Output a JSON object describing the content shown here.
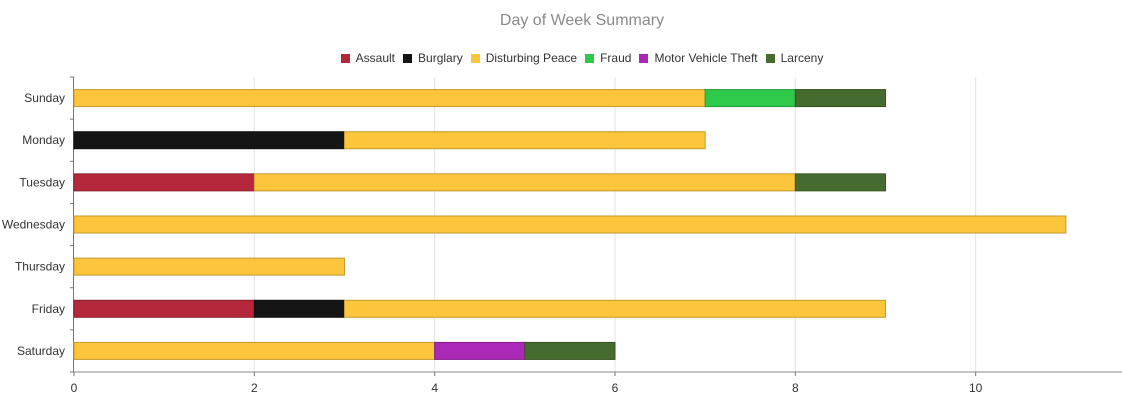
{
  "chart_data": {
    "type": "bar",
    "orientation": "horizontal",
    "stacked": true,
    "title": "Day of Week Summary",
    "categories": [
      "Sunday",
      "Monday",
      "Tuesday",
      "Wednesday",
      "Thursday",
      "Friday",
      "Saturday"
    ],
    "series": [
      {
        "name": "Assault",
        "color": "#b5283c",
        "values": [
          0,
          0,
          2,
          0,
          0,
          2,
          0
        ]
      },
      {
        "name": "Burglary",
        "color": "#151515",
        "values": [
          0,
          3,
          0,
          0,
          0,
          1,
          0
        ]
      },
      {
        "name": "Disturbing Peace",
        "color": "#fdc53b",
        "values": [
          7,
          4,
          6,
          11,
          3,
          6,
          4
        ]
      },
      {
        "name": "Fraud",
        "color": "#2ec84a",
        "values": [
          1,
          0,
          0,
          0,
          0,
          0,
          0
        ]
      },
      {
        "name": "Motor Vehicle Theft",
        "color": "#a928b5",
        "values": [
          0,
          0,
          0,
          0,
          0,
          0,
          1
        ]
      },
      {
        "name": "Larceny",
        "color": "#466b2e",
        "values": [
          1,
          0,
          1,
          0,
          0,
          0,
          1
        ]
      }
    ],
    "xlim": [
      0,
      12
    ],
    "xticks": [
      0,
      2,
      4,
      6,
      8,
      10
    ],
    "grid": true,
    "legend_position": "top"
  }
}
